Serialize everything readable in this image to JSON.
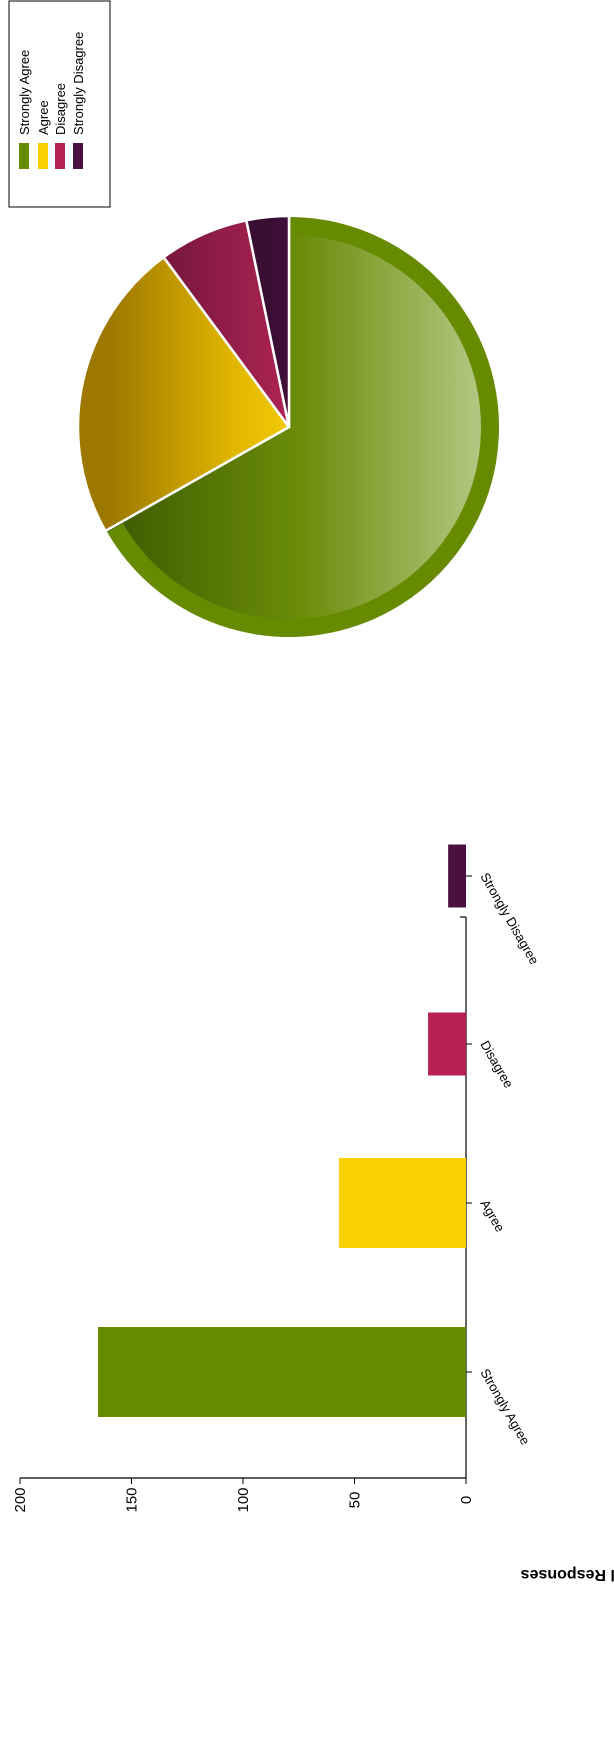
{
  "chart_data": [
    {
      "type": "pie",
      "categories": [
        "Strongly Agree",
        "Agree",
        "Disagree",
        "Strongly Disagree"
      ],
      "values": [
        165,
        57,
        17,
        8
      ],
      "colors": [
        "#668a00",
        "#fad000",
        "#b81f52",
        "#4a1040"
      ],
      "legend": {
        "items": [
          "Strongly Agree",
          "Agree",
          "Disagree",
          "Strongly Disagree"
        ],
        "placement": "top-right"
      }
    },
    {
      "type": "bar",
      "categories": [
        "Strongly Agree",
        "Agree",
        "Disagree",
        "Strongly Disagree"
      ],
      "values": [
        165,
        57,
        17,
        8
      ],
      "colors": [
        "#668a00",
        "#fad000",
        "#b81f52",
        "#4a1040"
      ],
      "ylabel": "Actual Responses",
      "ylim": [
        0,
        200
      ],
      "yticks": [
        0,
        50,
        100,
        150,
        200
      ]
    }
  ]
}
